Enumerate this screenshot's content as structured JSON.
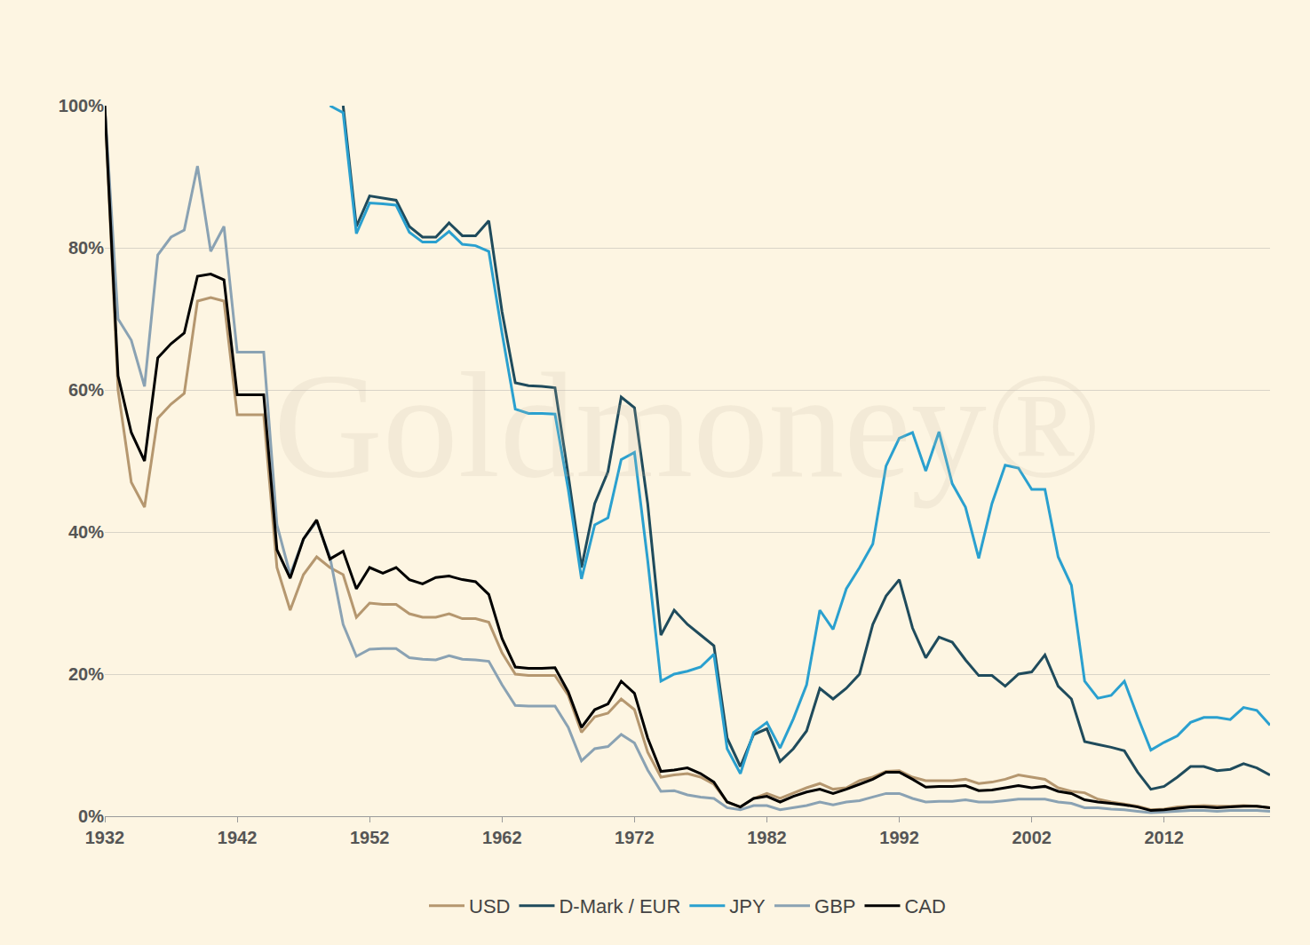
{
  "chart_data": {
    "type": "line",
    "annotations": [
      "Goldmoney®"
    ],
    "x": [
      1932,
      1933,
      1934,
      1935,
      1936,
      1937,
      1938,
      1939,
      1940,
      1941,
      1942,
      1943,
      1944,
      1945,
      1946,
      1947,
      1948,
      1949,
      1950,
      1951,
      1952,
      1953,
      1954,
      1955,
      1956,
      1957,
      1958,
      1959,
      1960,
      1961,
      1962,
      1963,
      1964,
      1965,
      1966,
      1967,
      1968,
      1969,
      1970,
      1971,
      1972,
      1973,
      1974,
      1975,
      1976,
      1977,
      1978,
      1979,
      1980,
      1981,
      1982,
      1983,
      1984,
      1985,
      1986,
      1987,
      1988,
      1989,
      1990,
      1991,
      1992,
      1993,
      1994,
      1995,
      1996,
      1997,
      1998,
      1999,
      2000,
      2001,
      2002,
      2003,
      2004,
      2005,
      2006,
      2007,
      2008,
      2009,
      2010,
      2011,
      2012,
      2013,
      2014,
      2015,
      2016,
      2017,
      2018,
      2019,
      2020
    ],
    "series": [
      {
        "name": "USD",
        "color": "#b5976f",
        "values": [
          100,
          60,
          47,
          43.5,
          56,
          58,
          59.5,
          72.5,
          73,
          72.5,
          56.5,
          56.5,
          56.5,
          35,
          29,
          34,
          36.5,
          35,
          34,
          28,
          30,
          29.8,
          29.8,
          28.5,
          28,
          28,
          28.5,
          27.8,
          27.8,
          27.3,
          23,
          20,
          19.8,
          19.8,
          19.8,
          17,
          11.8,
          14,
          14.5,
          16.5,
          15,
          9,
          5.5,
          5.8,
          6,
          5.5,
          4.5,
          2,
          1.3,
          2.5,
          3.2,
          2.5,
          3.3,
          4,
          4.6,
          3.8,
          4,
          5,
          5.5,
          6.3,
          6.4,
          5.5,
          5,
          5,
          5,
          5.2,
          4.6,
          4.8,
          5.2,
          5.8,
          5.5,
          5.2,
          4,
          3.5,
          3.3,
          2.4,
          2,
          1.7,
          1.4,
          0.9,
          1,
          1.3,
          1.4,
          1.5,
          1.4,
          1.4,
          1.5,
          1.4,
          1.2
        ]
      },
      {
        "name": "D-Mark / EUR",
        "color": "#1f4b5c",
        "values": [
          null,
          null,
          null,
          null,
          null,
          null,
          null,
          null,
          null,
          null,
          null,
          null,
          null,
          null,
          null,
          null,
          null,
          null,
          100,
          83,
          87.3,
          87,
          86.7,
          83,
          81.5,
          81.5,
          83.5,
          81.7,
          81.7,
          83.8,
          71,
          61,
          60.6,
          60.5,
          60.3,
          48,
          35,
          44,
          48.5,
          59,
          57.5,
          44,
          25.5,
          29,
          27,
          25.5,
          24,
          11,
          7,
          11.5,
          12.3,
          7.7,
          9.5,
          12,
          18,
          16.5,
          18,
          20,
          27,
          31,
          33.3,
          26.5,
          22.3,
          25.2,
          24.5,
          22,
          19.8,
          19.8,
          18.3,
          20,
          20.3,
          22.7,
          18.3,
          16.5,
          10.5,
          10.1,
          9.7,
          9.2,
          6.2,
          3.8,
          4.2,
          5.5,
          7,
          7,
          6.4,
          6.6,
          7.4,
          6.8,
          5.8
        ]
      },
      {
        "name": "JPY",
        "color": "#2aa0cf",
        "values": [
          null,
          null,
          null,
          null,
          null,
          null,
          null,
          null,
          null,
          null,
          null,
          null,
          null,
          null,
          null,
          null,
          null,
          100,
          99,
          82,
          86.3,
          86.2,
          86,
          82.2,
          80.8,
          80.8,
          82.3,
          80.5,
          80.3,
          79.5,
          68,
          57.3,
          56.7,
          56.7,
          56.6,
          46,
          33.4,
          41,
          42,
          50.2,
          51.2,
          36,
          19,
          20,
          20.4,
          21,
          22.8,
          9.5,
          6,
          11.8,
          13.2,
          9.6,
          13.7,
          18.5,
          29,
          26.3,
          32,
          35,
          38.3,
          49.3,
          53.2,
          54,
          48.6,
          54.1,
          46.8,
          43.5,
          36.3,
          44,
          49.4,
          49,
          46,
          46,
          36.5,
          32.5,
          19,
          16.6,
          17,
          19,
          14,
          9.3,
          10.4,
          11.3,
          13.2,
          13.9,
          13.9,
          13.6,
          15.3,
          14.9,
          12.8
        ]
      },
      {
        "name": "GBP",
        "color": "#8aa2b3",
        "values": [
          100,
          70,
          67,
          60.5,
          79,
          81.5,
          82.5,
          91.5,
          79.5,
          83,
          65.3,
          65.3,
          65.3,
          41,
          34,
          39,
          41.5,
          36.5,
          27,
          22.5,
          23.5,
          23.6,
          23.6,
          22.3,
          22.1,
          22,
          22.6,
          22.1,
          22,
          21.8,
          18.5,
          15.6,
          15.5,
          15.5,
          15.5,
          12.5,
          7.8,
          9.5,
          9.8,
          11.5,
          10.3,
          6.5,
          3.5,
          3.6,
          3,
          2.7,
          2.5,
          1.2,
          0.9,
          1.5,
          1.5,
          0.9,
          1.2,
          1.5,
          2,
          1.6,
          2,
          2.2,
          2.7,
          3.2,
          3.2,
          2.5,
          2,
          2.1,
          2.1,
          2.3,
          2,
          2,
          2.2,
          2.4,
          2.4,
          2.4,
          2,
          1.8,
          1.2,
          1.2,
          1,
          0.9,
          0.7,
          0.5,
          0.6,
          0.7,
          0.8,
          0.8,
          0.7,
          0.8,
          0.8,
          0.8,
          0.7
        ]
      },
      {
        "name": "CAD",
        "color": "#000000",
        "values": [
          100,
          62,
          54,
          50,
          64.5,
          66.5,
          68,
          76,
          76.3,
          75.5,
          59.3,
          59.3,
          59.3,
          37.5,
          33.5,
          39,
          41.7,
          36.2,
          37.3,
          32,
          35,
          34.2,
          35,
          33.3,
          32.7,
          33.6,
          33.8,
          33.3,
          33,
          31.2,
          25,
          21,
          20.8,
          20.8,
          20.9,
          17.5,
          12.5,
          15,
          15.8,
          19,
          17.3,
          11,
          6.3,
          6.5,
          6.8,
          6,
          4.8,
          2,
          1.3,
          2.5,
          2.8,
          2,
          2.8,
          3.4,
          3.8,
          3.2,
          3.8,
          4.5,
          5.2,
          6.2,
          6.2,
          5.2,
          4.1,
          4.2,
          4.2,
          4.3,
          3.6,
          3.7,
          4,
          4.3,
          4,
          4.2,
          3.5,
          3.2,
          2.3,
          2,
          1.8,
          1.6,
          1.3,
          0.8,
          0.9,
          1.1,
          1.3,
          1.3,
          1.2,
          1.3,
          1.4,
          1.4,
          1.2
        ]
      }
    ],
    "xlim": [
      1932,
      2020
    ],
    "xticks": [
      1932,
      1942,
      1952,
      1962,
      1972,
      1982,
      1992,
      2002,
      2012
    ],
    "ylim": [
      0,
      100
    ],
    "yticks": [
      {
        "value": 0,
        "label": "0%"
      },
      {
        "value": 20,
        "label": "20%"
      },
      {
        "value": 40,
        "label": "40%"
      },
      {
        "value": 60,
        "label": "60%"
      },
      {
        "value": 80,
        "label": "80%"
      },
      {
        "value": 100,
        "label": "100%"
      }
    ],
    "grid": true,
    "legend": "bottom"
  }
}
